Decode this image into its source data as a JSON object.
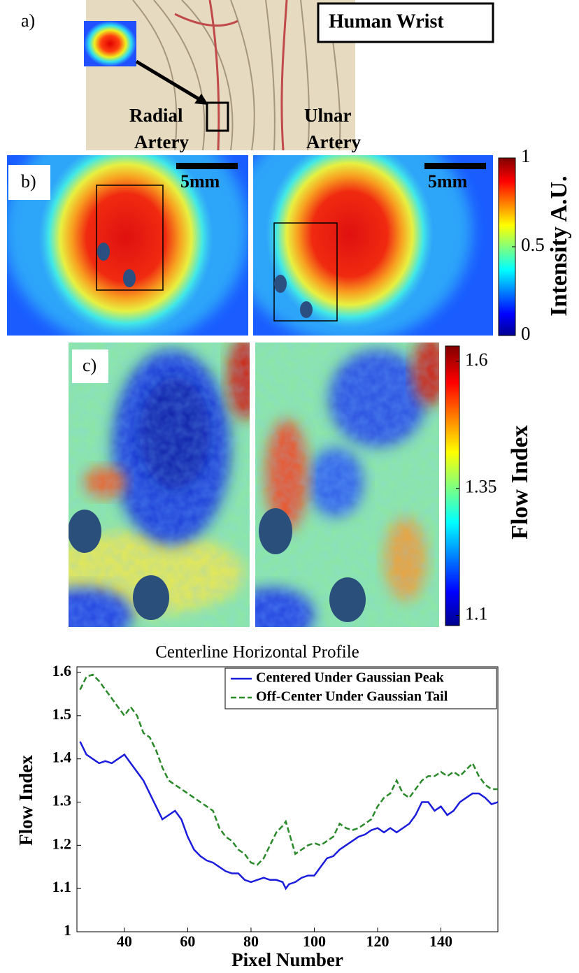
{
  "panel_a": {
    "label": "a)",
    "title": "Human Wrist",
    "radial": [
      "Radial",
      "Artery"
    ],
    "ulnar": [
      "Ulnar",
      "Artery"
    ]
  },
  "panel_b": {
    "label": "b)",
    "scale_bar": "5mm",
    "colorbar": {
      "label": "Intensity A.U.",
      "lim": [
        0,
        1
      ],
      "ticks": [
        0,
        0.5,
        1
      ]
    }
  },
  "panel_c": {
    "label": "c)",
    "colorbar": {
      "label": "Flow Index",
      "lim": [
        1.08,
        1.63
      ],
      "ticks": [
        1.1,
        1.35,
        1.6
      ]
    }
  },
  "chart_data": {
    "type": "line",
    "title": "Centerline Horizontal Profile",
    "x_label": "Pixel Number",
    "y_label": "Flow Index",
    "x": [
      26,
      28,
      30,
      32,
      34,
      36,
      38,
      40,
      42,
      44,
      46,
      48,
      50,
      52,
      54,
      56,
      58,
      60,
      62,
      64,
      66,
      68,
      70,
      72,
      74,
      76,
      78,
      80,
      82,
      84,
      86,
      88,
      90,
      91,
      92,
      94,
      96,
      98,
      100,
      102,
      104,
      106,
      108,
      110,
      112,
      114,
      116,
      118,
      120,
      122,
      124,
      126,
      128,
      130,
      132,
      134,
      136,
      138,
      140,
      142,
      144,
      146,
      148,
      150,
      152,
      154,
      156,
      158
    ],
    "series": [
      {
        "name": "Centered Under Gaussian Peak",
        "color": "#1c1cdc",
        "linestyle": "solid",
        "values": [
          1.44,
          1.41,
          1.4,
          1.39,
          1.395,
          1.39,
          1.4,
          1.41,
          1.39,
          1.37,
          1.35,
          1.32,
          1.29,
          1.26,
          1.27,
          1.28,
          1.26,
          1.22,
          1.19,
          1.175,
          1.165,
          1.16,
          1.15,
          1.14,
          1.135,
          1.135,
          1.12,
          1.115,
          1.12,
          1.125,
          1.12,
          1.12,
          1.115,
          1.1,
          1.11,
          1.115,
          1.125,
          1.13,
          1.13,
          1.15,
          1.17,
          1.175,
          1.19,
          1.2,
          1.21,
          1.22,
          1.225,
          1.235,
          1.24,
          1.23,
          1.24,
          1.23,
          1.24,
          1.25,
          1.27,
          1.3,
          1.3,
          1.28,
          1.29,
          1.27,
          1.28,
          1.3,
          1.31,
          1.32,
          1.32,
          1.31,
          1.295,
          1.3
        ]
      },
      {
        "name": "Off-Center Under Gaussian Tail",
        "color": "#2a8a2a",
        "linestyle": "dashed",
        "values": [
          1.56,
          1.59,
          1.595,
          1.58,
          1.56,
          1.54,
          1.52,
          1.5,
          1.52,
          1.5,
          1.46,
          1.45,
          1.42,
          1.38,
          1.35,
          1.34,
          1.33,
          1.32,
          1.31,
          1.3,
          1.29,
          1.28,
          1.24,
          1.22,
          1.21,
          1.19,
          1.18,
          1.16,
          1.155,
          1.17,
          1.2,
          1.23,
          1.245,
          1.255,
          1.23,
          1.18,
          1.19,
          1.2,
          1.205,
          1.2,
          1.21,
          1.22,
          1.25,
          1.24,
          1.235,
          1.24,
          1.25,
          1.26,
          1.29,
          1.31,
          1.32,
          1.35,
          1.32,
          1.31,
          1.33,
          1.35,
          1.36,
          1.36,
          1.37,
          1.36,
          1.37,
          1.36,
          1.375,
          1.39,
          1.36,
          1.34,
          1.33,
          1.33
        ]
      }
    ],
    "xlim": [
      25,
      158
    ],
    "xticks": [
      40,
      60,
      80,
      100,
      120,
      140
    ],
    "ylim": [
      1,
      1.6
    ],
    "yticks": [
      1,
      1.1,
      1.2,
      1.3,
      1.4,
      1.5,
      1.6
    ],
    "legend": "upper right"
  }
}
